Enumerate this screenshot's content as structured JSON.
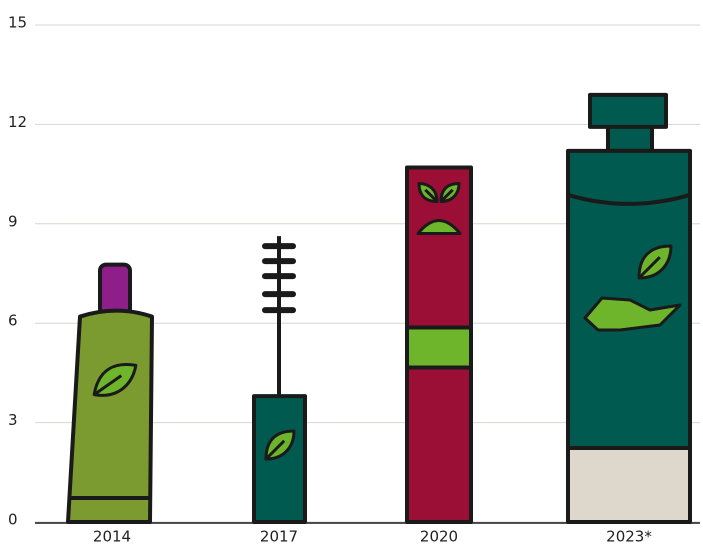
{
  "chart_data": {
    "type": "bar",
    "categories": [
      "2014",
      "2017",
      "2020",
      "2023*"
    ],
    "values": [
      6.2,
      3.8,
      10.7,
      11.2
    ],
    "colors": [
      "#7b9a2f",
      "#005a4f",
      "#9b0e35",
      "#005a4f"
    ],
    "ylim": [
      0,
      15
    ],
    "yticks": [
      0,
      3,
      6,
      9,
      12,
      15
    ],
    "grid": true
  }
}
